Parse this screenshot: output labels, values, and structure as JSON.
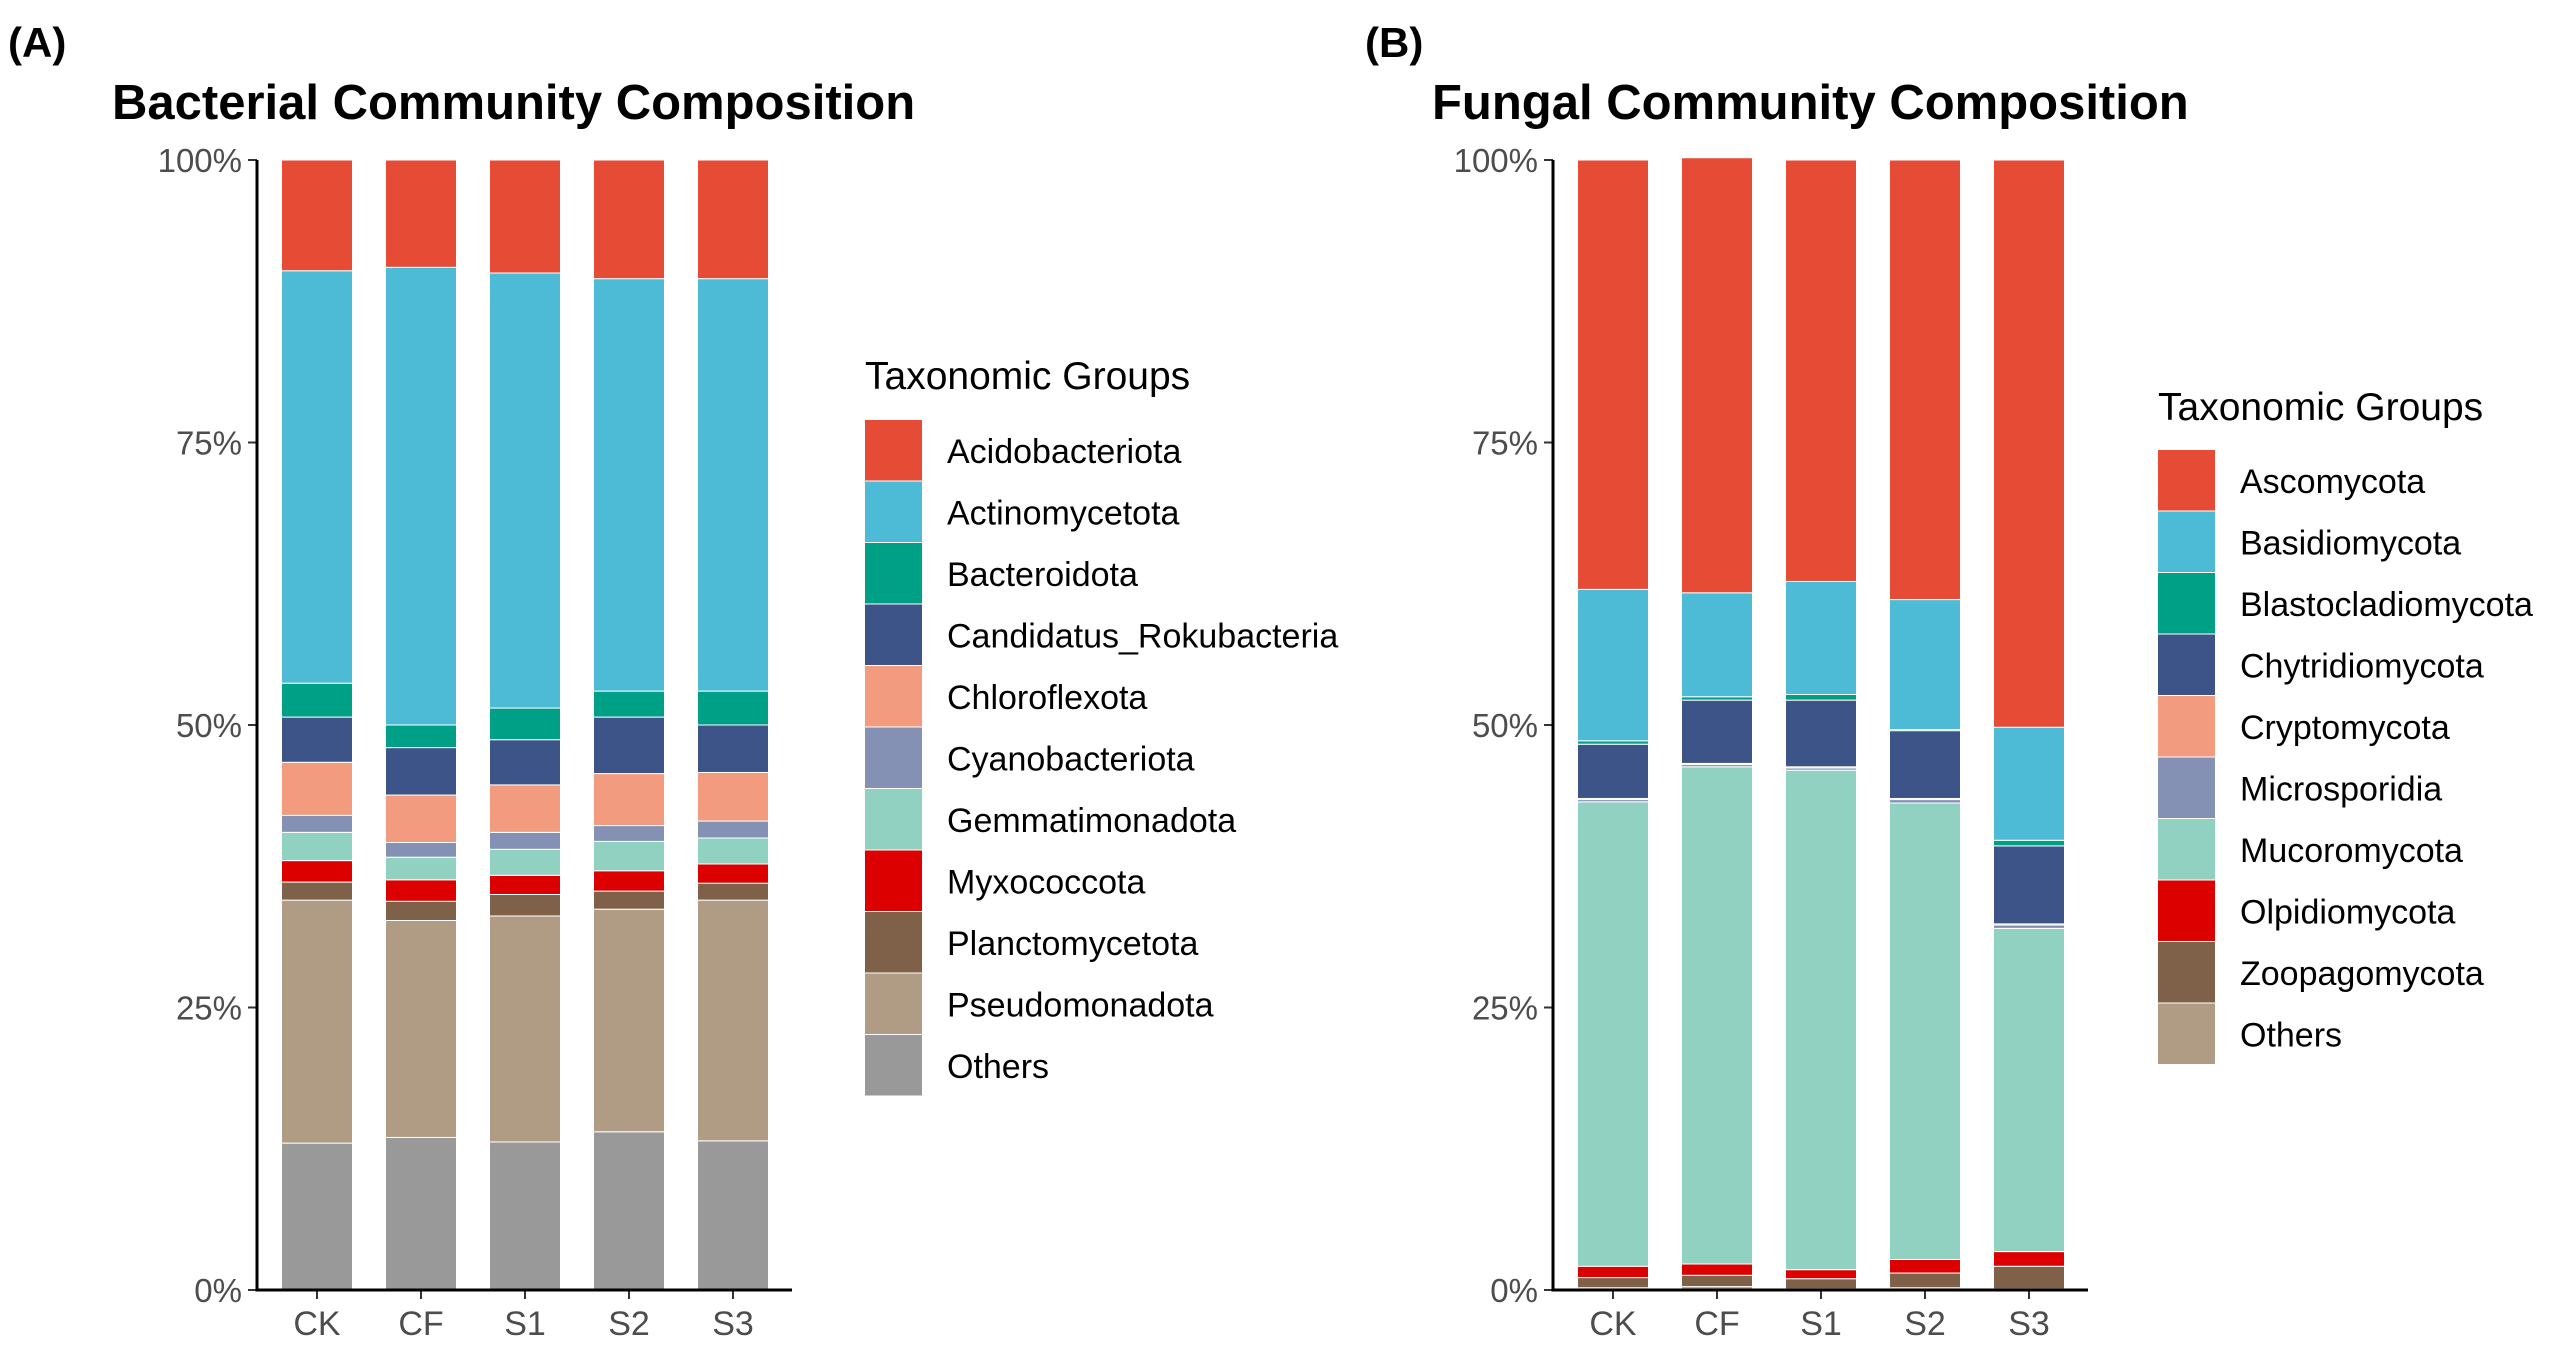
{
  "figure": {
    "panels": [
      "(A)",
      "(B)"
    ]
  },
  "chart_data": [
    {
      "type": "bar",
      "stacked": true,
      "title": "Bacterial Community Composition",
      "xlabel": "",
      "ylabel": "",
      "ylim": [
        0,
        100
      ],
      "y_ticks": [
        "0%",
        "25%",
        "50%",
        "75%",
        "100%"
      ],
      "categories": [
        "CK",
        "CF",
        "S1",
        "S2",
        "S3"
      ],
      "legend_title": "Taxonomic Groups",
      "legend_position": "right",
      "series": [
        {
          "name": "Acidobacteriota",
          "color": "#E64B35",
          "values": [
            9.8,
            9.5,
            10.0,
            10.5,
            10.5
          ]
        },
        {
          "name": "Actinomycetota",
          "color": "#4DBBD5",
          "values": [
            36.5,
            40.5,
            38.5,
            36.5,
            36.5
          ]
        },
        {
          "name": "Bacteroidota",
          "color": "#00A087",
          "values": [
            3.0,
            2.0,
            2.8,
            2.3,
            3.0
          ]
        },
        {
          "name": "Candidatus_Rokubacteria",
          "color": "#3C5488",
          "values": [
            4.0,
            4.2,
            4.0,
            5.0,
            4.2
          ]
        },
        {
          "name": "Chloroflexota",
          "color": "#F39B7F",
          "values": [
            4.7,
            4.2,
            4.2,
            4.6,
            4.3
          ]
        },
        {
          "name": "Cyanobacteriota",
          "color": "#8491B4",
          "values": [
            1.5,
            1.3,
            1.5,
            1.4,
            1.5
          ]
        },
        {
          "name": "Gemmatimonadota",
          "color": "#91D1C2",
          "values": [
            2.5,
            2.0,
            2.3,
            2.6,
            2.3
          ]
        },
        {
          "name": "Myxococcota",
          "color": "#DC0000",
          "values": [
            1.9,
            1.9,
            1.7,
            1.8,
            1.7
          ]
        },
        {
          "name": "Planctomycetota",
          "color": "#7E6148",
          "values": [
            1.6,
            1.7,
            1.9,
            1.6,
            1.5
          ]
        },
        {
          "name": "Pseudomonadota",
          "color": "#B09C85",
          "values": [
            21.5,
            19.2,
            20.0,
            19.7,
            21.3
          ]
        },
        {
          "name": "Others",
          "color": "#999999",
          "values": [
            13.0,
            13.5,
            13.1,
            14.0,
            13.2
          ]
        }
      ]
    },
    {
      "type": "bar",
      "stacked": true,
      "title": "Fungal Community Composition",
      "xlabel": "",
      "ylabel": "",
      "ylim": [
        0,
        100
      ],
      "y_ticks": [
        "0%",
        "25%",
        "50%",
        "75%",
        "100%"
      ],
      "categories": [
        "CK",
        "CF",
        "S1",
        "S2",
        "S3"
      ],
      "legend_title": "Taxonomic Groups",
      "legend_position": "right",
      "series": [
        {
          "name": "Ascomycota",
          "color": "#E64B35",
          "values": [
            38.0,
            38.5,
            37.3,
            38.9,
            50.2
          ]
        },
        {
          "name": "Basidiomycota",
          "color": "#4DBBD5",
          "values": [
            13.4,
            9.2,
            10.0,
            11.5,
            10.0
          ]
        },
        {
          "name": "Blastocladiomycota",
          "color": "#00A087",
          "values": [
            0.3,
            0.3,
            0.5,
            0.1,
            0.5
          ]
        },
        {
          "name": "Chytridiomycota",
          "color": "#3C5488",
          "values": [
            4.8,
            5.6,
            5.9,
            6.0,
            6.9
          ]
        },
        {
          "name": "Cryptomycota",
          "color": "#F39B7F",
          "values": [
            0.1,
            0.1,
            0.1,
            0.1,
            0.1
          ]
        },
        {
          "name": "Microsporidia",
          "color": "#8491B4",
          "values": [
            0.2,
            0.2,
            0.2,
            0.3,
            0.3
          ]
        },
        {
          "name": "Mucoromycota",
          "color": "#91D1C2",
          "values": [
            41.1,
            44.0,
            44.2,
            40.4,
            28.6
          ]
        },
        {
          "name": "Olpidiomycota",
          "color": "#DC0000",
          "values": [
            1.0,
            1.0,
            0.8,
            1.2,
            1.3
          ]
        },
        {
          "name": "Zoopagomycota",
          "color": "#7E6148",
          "values": [
            0.9,
            1.0,
            0.9,
            1.3,
            2.0
          ]
        },
        {
          "name": "Others",
          "color": "#B09C85",
          "values": [
            0.2,
            0.3,
            0.1,
            0.2,
            0.1
          ]
        }
      ]
    }
  ]
}
